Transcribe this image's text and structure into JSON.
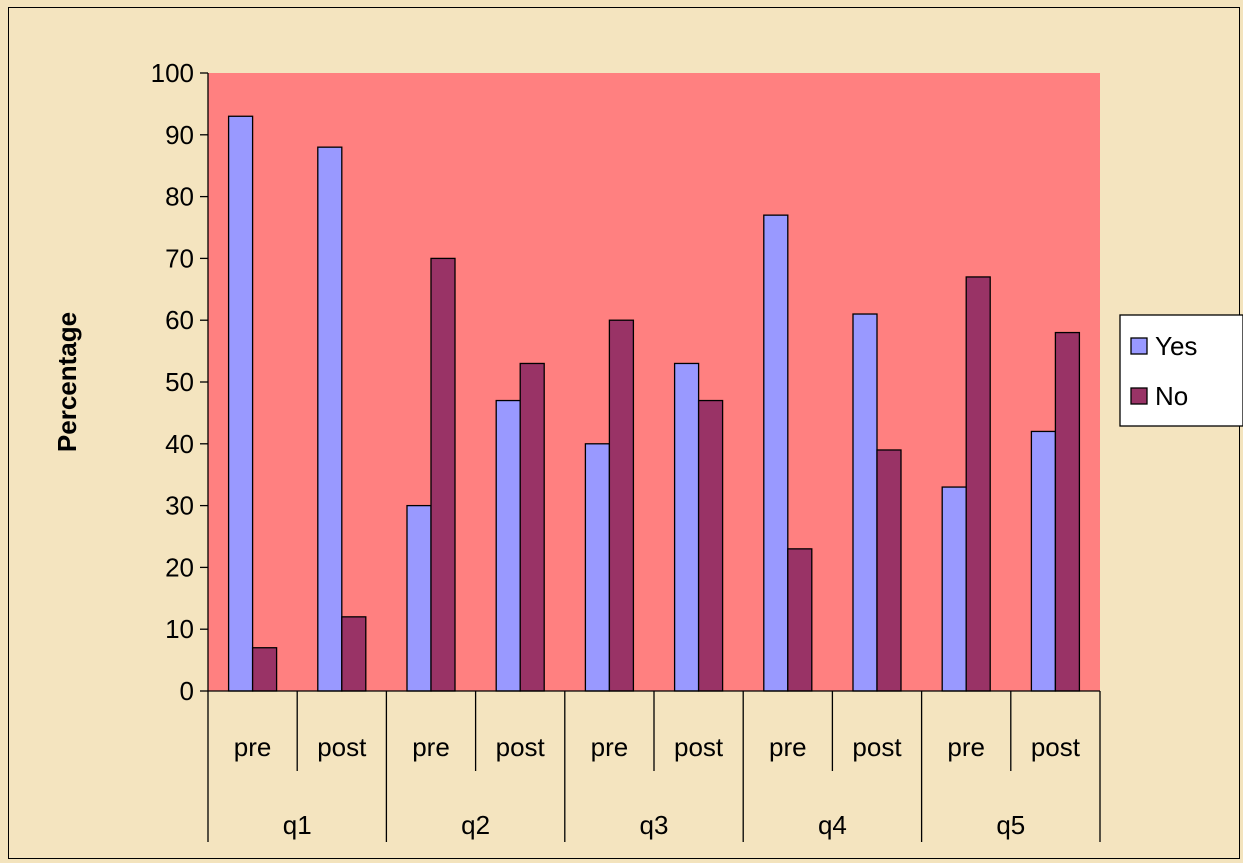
{
  "chart_data": {
    "type": "bar",
    "ylabel": "Percentage",
    "xlabel": "",
    "title": "",
    "ylim": [
      0,
      100
    ],
    "yticks": [
      0,
      10,
      20,
      30,
      40,
      50,
      60,
      70,
      80,
      90,
      100
    ],
    "groups": [
      "q1",
      "q2",
      "q3",
      "q4",
      "q5"
    ],
    "subcategories": [
      "pre",
      "post"
    ],
    "series": [
      {
        "name": "Yes",
        "color": "#9999ff",
        "values": [
          93,
          88,
          30,
          47,
          40,
          53,
          77,
          61,
          33,
          42
        ]
      },
      {
        "name": "No",
        "color": "#993366",
        "values": [
          7,
          12,
          70,
          53,
          60,
          47,
          23,
          39,
          67,
          58
        ]
      }
    ],
    "plot_background": "#ff8080",
    "legend_position": "right",
    "grid": false
  }
}
